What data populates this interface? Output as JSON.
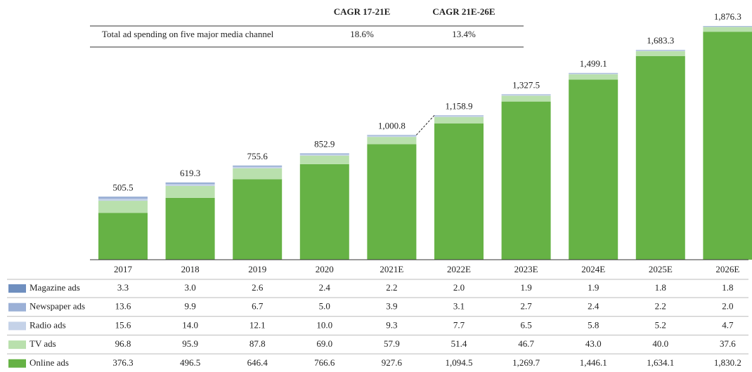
{
  "chart_data": {
    "type": "stacked_bar",
    "categories": [
      "2017",
      "2018",
      "2019",
      "2020",
      "2021E",
      "2022E",
      "2023E",
      "2024E",
      "2025E",
      "2026E"
    ],
    "totals": [
      505.5,
      619.3,
      755.6,
      852.9,
      1000.8,
      1158.9,
      1327.5,
      1499.1,
      1683.3,
      1876.3
    ],
    "total_labels": [
      "505.5",
      "619.3",
      "755.6",
      "852.9",
      "1,000.8",
      "1,158.9",
      "1,327.5",
      "1,499.1",
      "1,683.3",
      "1,876.3"
    ],
    "series": [
      {
        "name": "Magazine ads",
        "color": "#6f8fbf",
        "values": [
          3.3,
          3.0,
          2.6,
          2.4,
          2.2,
          2.0,
          1.9,
          1.9,
          1.8,
          1.8
        ],
        "value_labels": [
          "3.3",
          "3.0",
          "2.6",
          "2.4",
          "2.2",
          "2.0",
          "1.9",
          "1.9",
          "1.8",
          "1.8"
        ]
      },
      {
        "name": "Newspaper ads",
        "color": "#9bb0d6",
        "values": [
          13.6,
          9.9,
          6.7,
          5.0,
          3.9,
          3.1,
          2.7,
          2.4,
          2.2,
          2.0
        ],
        "value_labels": [
          "13.6",
          "9.9",
          "6.7",
          "5.0",
          "3.9",
          "3.1",
          "2.7",
          "2.4",
          "2.2",
          "2.0"
        ]
      },
      {
        "name": "Radio ads",
        "color": "#c5d2e8",
        "values": [
          15.6,
          14.0,
          12.1,
          10.0,
          9.3,
          7.7,
          6.5,
          5.8,
          5.2,
          4.7
        ],
        "value_labels": [
          "15.6",
          "14.0",
          "12.1",
          "10.0",
          "9.3",
          "7.7",
          "6.5",
          "5.8",
          "5.2",
          "4.7"
        ]
      },
      {
        "name": "TV ads",
        "color": "#b9e0ad",
        "values": [
          96.8,
          95.9,
          87.8,
          69.0,
          57.9,
          51.4,
          46.7,
          43.0,
          40.0,
          37.6
        ],
        "value_labels": [
          "96.8",
          "95.9",
          "87.8",
          "69.0",
          "57.9",
          "51.4",
          "46.7",
          "43.0",
          "40.0",
          "37.6"
        ]
      },
      {
        "name": "Online ads",
        "color": "#66b245",
        "values": [
          376.3,
          496.5,
          646.4,
          766.6,
          927.6,
          1094.5,
          1269.7,
          1446.1,
          1634.1,
          1830.2
        ],
        "value_labels": [
          "376.3",
          "496.5",
          "646.4",
          "766.6",
          "927.6",
          "1,094.5",
          "1,269.7",
          "1,446.1",
          "1,634.1",
          "1,830.2"
        ]
      }
    ]
  },
  "cagr": {
    "headers": [
      "CAGR 17-21E",
      "CAGR 21E-26E"
    ],
    "row_label": "Total ad spending on five major media channel",
    "cells": [
      "18.6%",
      "13.4%"
    ]
  }
}
